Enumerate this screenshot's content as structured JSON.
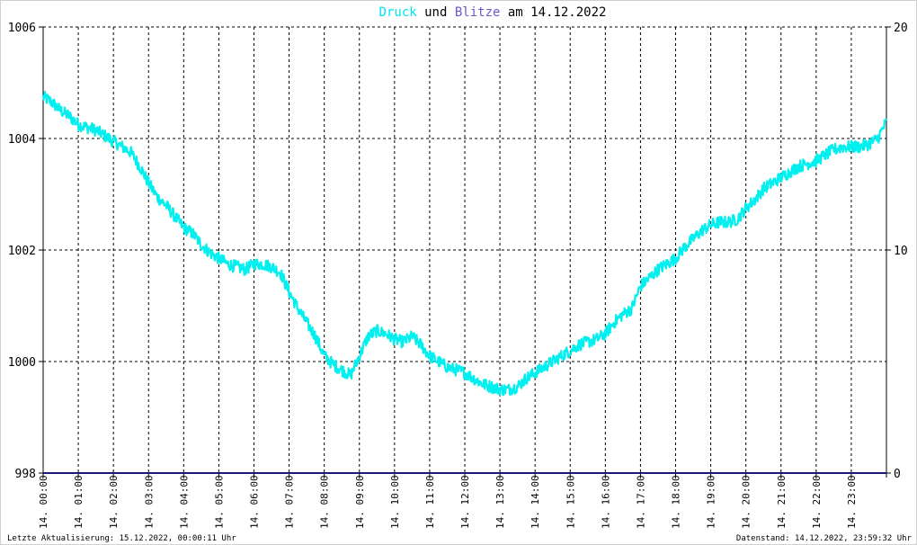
{
  "chart_data": {
    "type": "line",
    "title_parts": [
      {
        "text": "Druck",
        "color": "#00e5ee"
      },
      {
        "text": " und ",
        "color": "#000000"
      },
      {
        "text": "Blitze",
        "color": "#6a5acd"
      },
      {
        "text": " am 14.12.2022",
        "color": "#000000"
      }
    ],
    "x_tick_labels": [
      "14. 00:00",
      "14. 01:00",
      "14. 02:00",
      "14. 03:00",
      "14. 04:00",
      "14. 05:00",
      "14. 06:00",
      "14. 07:00",
      "14. 08:00",
      "14. 09:00",
      "14. 10:00",
      "14. 11:00",
      "14. 12:00",
      "14. 13:00",
      "14. 14:00",
      "14. 15:00",
      "14. 16:00",
      "14. 17:00",
      "14. 18:00",
      "14. 19:00",
      "14. 20:00",
      "14. 21:00",
      "14. 22:00",
      "14. 23:00"
    ],
    "xlim_hours": [
      0,
      24
    ],
    "y_left": {
      "ticks": [
        "1006",
        "1004",
        "1002",
        "1000",
        "998"
      ],
      "ylim": [
        998,
        1006
      ]
    },
    "y_right": {
      "ticks": [
        "20",
        "10",
        "0"
      ],
      "ylim": [
        0,
        20
      ]
    },
    "grid": true,
    "series": [
      {
        "name": "Druck",
        "color": "#00f0f0",
        "x": [
          0,
          0.25,
          0.5,
          0.75,
          1,
          1.25,
          1.5,
          1.75,
          2,
          2.25,
          2.5,
          2.75,
          3,
          3.25,
          3.5,
          3.75,
          4,
          4.25,
          4.5,
          4.75,
          5,
          5.25,
          5.5,
          5.75,
          6,
          6.25,
          6.5,
          6.75,
          7,
          7.25,
          7.5,
          7.75,
          8,
          8.25,
          8.5,
          8.75,
          9,
          9.25,
          9.5,
          9.75,
          10,
          10.25,
          10.5,
          10.75,
          11,
          11.25,
          11.5,
          11.75,
          12,
          12.25,
          12.5,
          12.75,
          13,
          13.25,
          13.5,
          13.75,
          14,
          14.25,
          14.5,
          14.75,
          15,
          15.25,
          15.5,
          15.75,
          16,
          16.25,
          16.5,
          16.75,
          17,
          17.25,
          17.5,
          17.75,
          18,
          18.25,
          18.5,
          18.75,
          19,
          19.25,
          19.5,
          19.75,
          20,
          20.25,
          20.5,
          20.75,
          21,
          21.25,
          21.5,
          21.75,
          22,
          22.25,
          22.5,
          22.75,
          23,
          23.25,
          23.5,
          23.75,
          24
        ],
        "values": [
          1004.75,
          1004.65,
          1004.5,
          1004.4,
          1004.25,
          1004.2,
          1004.15,
          1004.05,
          1003.95,
          1003.85,
          1003.75,
          1003.5,
          1003.2,
          1002.95,
          1002.8,
          1002.6,
          1002.4,
          1002.3,
          1002.1,
          1001.95,
          1001.85,
          1001.75,
          1001.7,
          1001.65,
          1001.75,
          1001.75,
          1001.7,
          1001.6,
          1001.25,
          1000.95,
          1000.7,
          1000.45,
          1000.1,
          999.95,
          999.85,
          999.75,
          1000.1,
          1000.45,
          1000.55,
          1000.5,
          1000.4,
          1000.35,
          1000.45,
          1000.3,
          1000.1,
          1000.0,
          999.9,
          999.85,
          999.8,
          999.7,
          999.6,
          999.55,
          999.5,
          999.5,
          999.55,
          999.7,
          999.8,
          999.9,
          1000.0,
          1000.1,
          1000.2,
          1000.3,
          1000.35,
          1000.4,
          1000.5,
          1000.7,
          1000.85,
          1000.95,
          1001.35,
          1001.5,
          1001.65,
          1001.75,
          1001.85,
          1002.05,
          1002.2,
          1002.35,
          1002.45,
          1002.5,
          1002.5,
          1002.55,
          1002.75,
          1002.9,
          1003.1,
          1003.2,
          1003.3,
          1003.4,
          1003.5,
          1003.55,
          1003.6,
          1003.7,
          1003.8,
          1003.85,
          1003.85,
          1003.85,
          1003.9,
          1004.0,
          1004.3
        ]
      },
      {
        "name": "Blitze",
        "color": "#1a1a7a",
        "x": [
          0,
          24
        ],
        "values": [
          0,
          0
        ]
      }
    ]
  },
  "footer": {
    "left": "Letzte Aktualisierung: 15.12.2022, 00:00:11 Uhr",
    "right": "Datenstand: 14.12.2022, 23:59:32 Uhr"
  }
}
